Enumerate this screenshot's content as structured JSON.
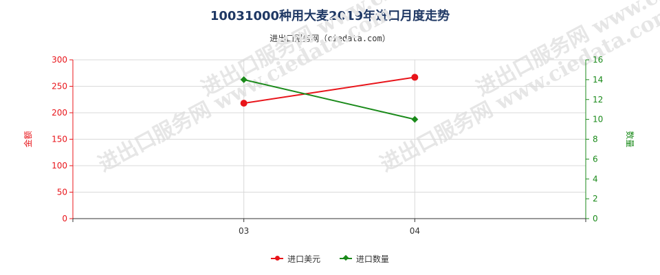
{
  "chart_data": {
    "type": "line",
    "title": "10031000种用大麦2019年进口月度走势",
    "subtitle": "进出口服务网（ciedata.com）",
    "watermark": "进出口服务网 www.ciedata.com",
    "categories": [
      "03",
      "04"
    ],
    "y_left": {
      "label": "金额",
      "ylim": [
        0,
        300
      ],
      "ticks": [
        "0",
        "50",
        "100",
        "150",
        "200",
        "250",
        "300"
      ],
      "color": "#e8141a"
    },
    "y_right": {
      "label": "数量",
      "ylim": [
        0,
        16
      ],
      "ticks": [
        "0",
        "2",
        "4",
        "6",
        "8",
        "10",
        "12",
        "14",
        "16"
      ],
      "color": "#1a8a1a"
    },
    "series": [
      {
        "name": "进口美元",
        "axis": "left",
        "color": "#e8141a",
        "marker": "circle",
        "values": [
          218,
          267
        ]
      },
      {
        "name": "进口数量",
        "axis": "right",
        "color": "#1a8a1a",
        "marker": "diamond",
        "values": [
          14,
          10
        ]
      }
    ],
    "grid": true,
    "legend_position": "bottom"
  }
}
